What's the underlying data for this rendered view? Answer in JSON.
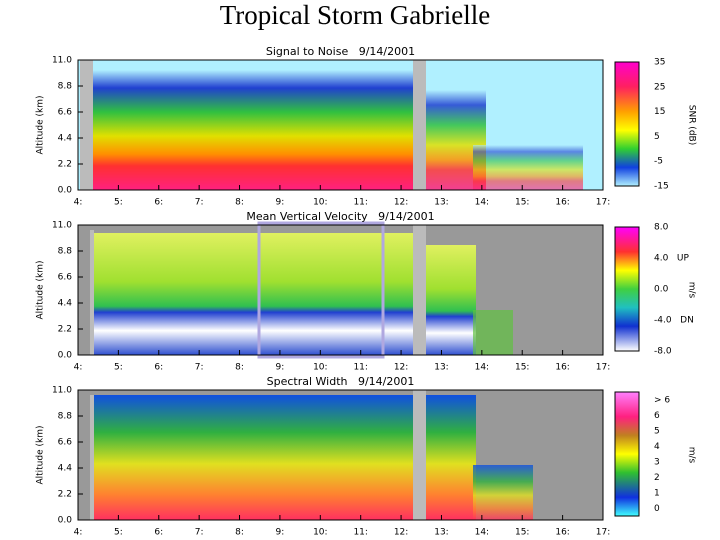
{
  "title": "Tropical Storm Gabrielle",
  "panels": [
    {
      "title": "Signal to Noise   9/14/2001",
      "y_axis_label": "Altitude (km)",
      "yticks": [
        "0.0",
        "2.2",
        "4.4",
        "6.6",
        "8.8",
        "11.0"
      ],
      "xticks": [
        "4:",
        "5:",
        "6:",
        "7:",
        "8:",
        "9:",
        "10:",
        "11:",
        "12:",
        "13:",
        "14:",
        "15:",
        "16:",
        "17:"
      ],
      "colorbar_ticks": [
        "35",
        "25",
        "15",
        "5",
        "-5",
        "-15"
      ],
      "colorbar_label": "SNR (dB)"
    },
    {
      "title": "Mean Vertical Velocity   9/14/2001",
      "y_axis_label": "Altitude (km)",
      "yticks": [
        "0.0",
        "2.2",
        "4.4",
        "6.6",
        "8.8",
        "11.0"
      ],
      "xticks": [
        "4:",
        "5:",
        "6:",
        "7:",
        "8:",
        "9:",
        "10:",
        "11:",
        "12:",
        "13:",
        "14:",
        "15:",
        "16:",
        "17:"
      ],
      "colorbar_ticks": [
        "8.0",
        "4.0   UP",
        "0.0",
        "-4.0   DN",
        "-8.0"
      ],
      "colorbar_label": "m/s"
    },
    {
      "title": "Spectral Width   9/14/2001",
      "y_axis_label": "Altitude (km)",
      "yticks": [
        "0.0",
        "2.2",
        "4.4",
        "6.6",
        "8.8",
        "11.0"
      ],
      "xticks": [
        "4:",
        "5:",
        "6:",
        "7:",
        "8:",
        "9:",
        "10:",
        "11:",
        "12:",
        "13:",
        "14:",
        "15:",
        "16:",
        "17:"
      ],
      "colorbar_ticks": [
        "> 6",
        "6",
        "5",
        "4",
        "3",
        "2",
        "1",
        "0"
      ],
      "colorbar_label": "m/s"
    }
  ]
}
